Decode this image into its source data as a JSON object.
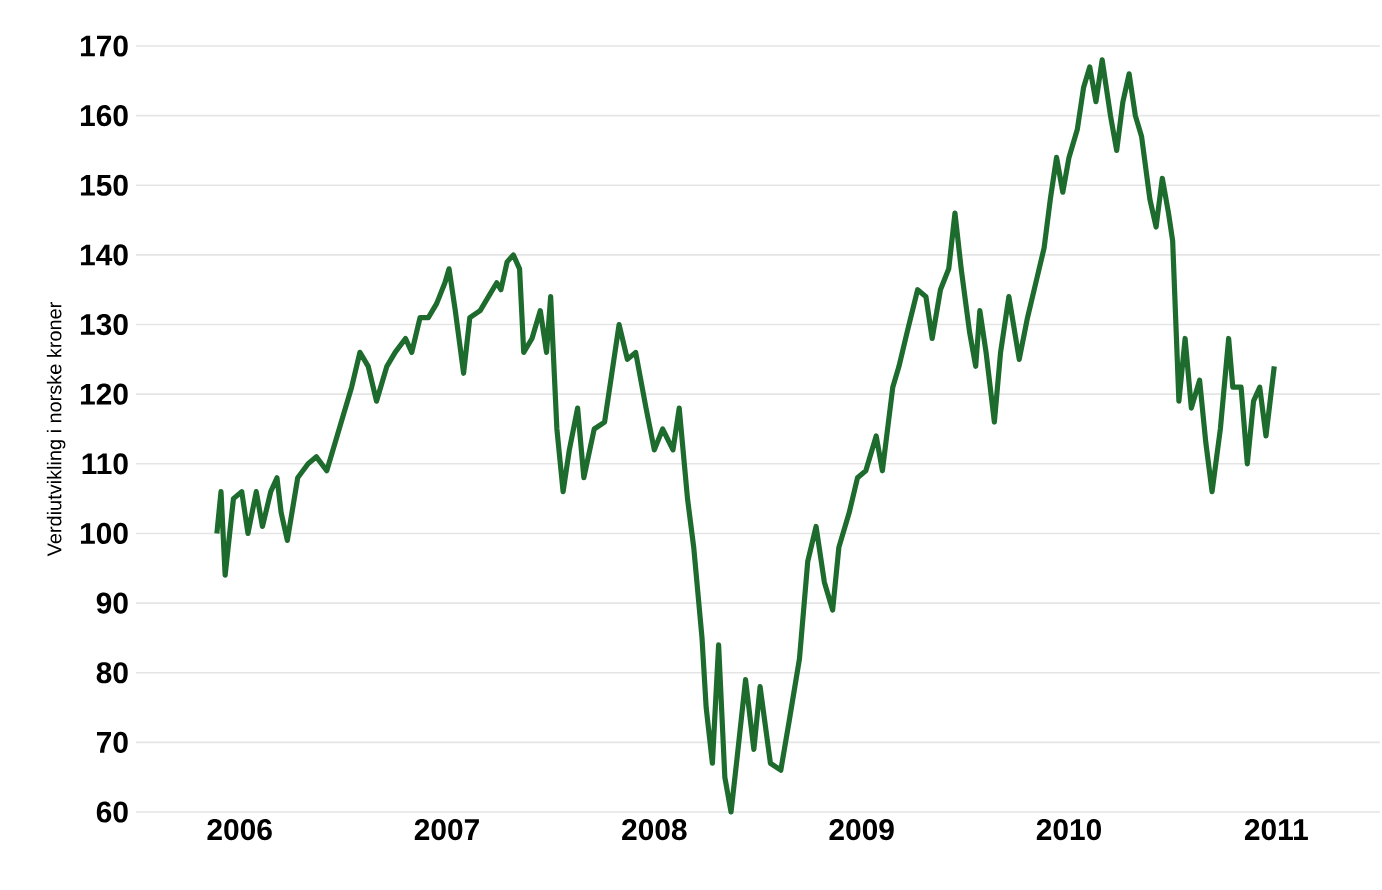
{
  "chart_data": {
    "type": "line",
    "ylabel": "Verdiutvikling i norske kroner",
    "xlim": [
      2006,
      2012
    ],
    "ylim": [
      60,
      170
    ],
    "xticks": [
      {
        "value": 2006.5,
        "label": "2006"
      },
      {
        "value": 2007.5,
        "label": "2007"
      },
      {
        "value": 2008.5,
        "label": "2008"
      },
      {
        "value": 2009.5,
        "label": "2009"
      },
      {
        "value": 2010.5,
        "label": "2010"
      },
      {
        "value": 2011.5,
        "label": "2011"
      }
    ],
    "yticks": [
      60,
      70,
      80,
      90,
      100,
      110,
      120,
      130,
      140,
      150,
      160,
      170
    ],
    "grid": "y",
    "marker": "none",
    "line_style": "solid",
    "series": [
      {
        "color": "#1e6b2e",
        "x": [
          2006.39,
          2006.41,
          2006.43,
          2006.47,
          2006.51,
          2006.54,
          2006.58,
          2006.61,
          2006.65,
          2006.68,
          2006.7,
          2006.73,
          2006.78,
          2006.83,
          2006.87,
          2006.92,
          2006.96,
          2007.0,
          2007.04,
          2007.08,
          2007.12,
          2007.16,
          2007.21,
          2007.25,
          2007.3,
          2007.33,
          2007.37,
          2007.41,
          2007.45,
          2007.49,
          2007.51,
          2007.54,
          2007.58,
          2007.61,
          2007.66,
          2007.7,
          2007.74,
          2007.76,
          2007.79,
          2007.82,
          2007.85,
          2007.87,
          2007.91,
          2007.95,
          2007.98,
          2008.0,
          2008.03,
          2008.06,
          2008.09,
          2008.13,
          2008.16,
          2008.21,
          2008.26,
          2008.3,
          2008.33,
          2008.37,
          2008.41,
          2008.46,
          2008.5,
          2008.54,
          2008.59,
          2008.62,
          2008.66,
          2008.69,
          2008.73,
          2008.75,
          2008.78,
          2008.81,
          2008.84,
          2008.87,
          2008.9,
          2008.94,
          2008.98,
          2009.01,
          2009.06,
          2009.11,
          2009.15,
          2009.2,
          2009.24,
          2009.28,
          2009.32,
          2009.36,
          2009.39,
          2009.44,
          2009.48,
          2009.52,
          2009.57,
          2009.6,
          2009.65,
          2009.68,
          2009.72,
          2009.77,
          2009.81,
          2009.84,
          2009.88,
          2009.92,
          2009.95,
          2009.98,
          2010.02,
          2010.05,
          2010.07,
          2010.1,
          2010.14,
          2010.17,
          2010.21,
          2010.26,
          2010.3,
          2010.34,
          2010.38,
          2010.41,
          2010.44,
          2010.47,
          2010.5,
          2010.54,
          2010.57,
          2010.6,
          2010.63,
          2010.66,
          2010.7,
          2010.73,
          2010.76,
          2010.79,
          2010.82,
          2010.85,
          2010.89,
          2010.92,
          2010.95,
          2010.98,
          2011.0,
          2011.03,
          2011.06,
          2011.09,
          2011.13,
          2011.16,
          2011.19,
          2011.23,
          2011.27,
          2011.29,
          2011.33,
          2011.36,
          2011.39,
          2011.42,
          2011.45,
          2011.49
        ],
        "values": [
          100,
          106,
          94,
          105,
          106,
          100,
          106,
          101,
          106,
          108,
          103,
          99,
          108,
          110,
          111,
          109,
          113,
          117,
          121,
          126,
          124,
          119,
          124,
          126,
          128,
          126,
          131,
          131,
          133,
          136,
          138,
          132,
          123,
          131,
          132,
          134,
          136,
          135,
          139,
          140,
          138,
          126,
          128,
          132,
          126,
          134,
          115,
          106,
          112,
          118,
          108,
          115,
          116,
          124,
          130,
          125,
          126,
          118,
          112,
          115,
          112,
          118,
          105,
          98,
          85,
          75,
          67,
          84,
          65,
          60,
          68,
          79,
          69,
          78,
          67,
          66,
          73,
          82,
          96,
          101,
          93,
          89,
          98,
          103,
          108,
          109,
          114,
          109,
          121,
          124,
          129,
          135,
          134,
          128,
          135,
          138,
          146,
          138,
          129,
          124,
          132,
          126,
          116,
          126,
          134,
          125,
          131,
          136,
          141,
          148,
          154,
          149,
          154,
          158,
          164,
          167,
          162,
          168,
          160,
          155,
          162,
          166,
          160,
          157,
          148,
          144,
          151,
          146,
          142,
          119,
          128,
          118,
          122,
          113,
          106,
          115,
          128,
          121,
          121,
          110,
          119,
          121,
          114,
          124
        ]
      }
    ]
  }
}
